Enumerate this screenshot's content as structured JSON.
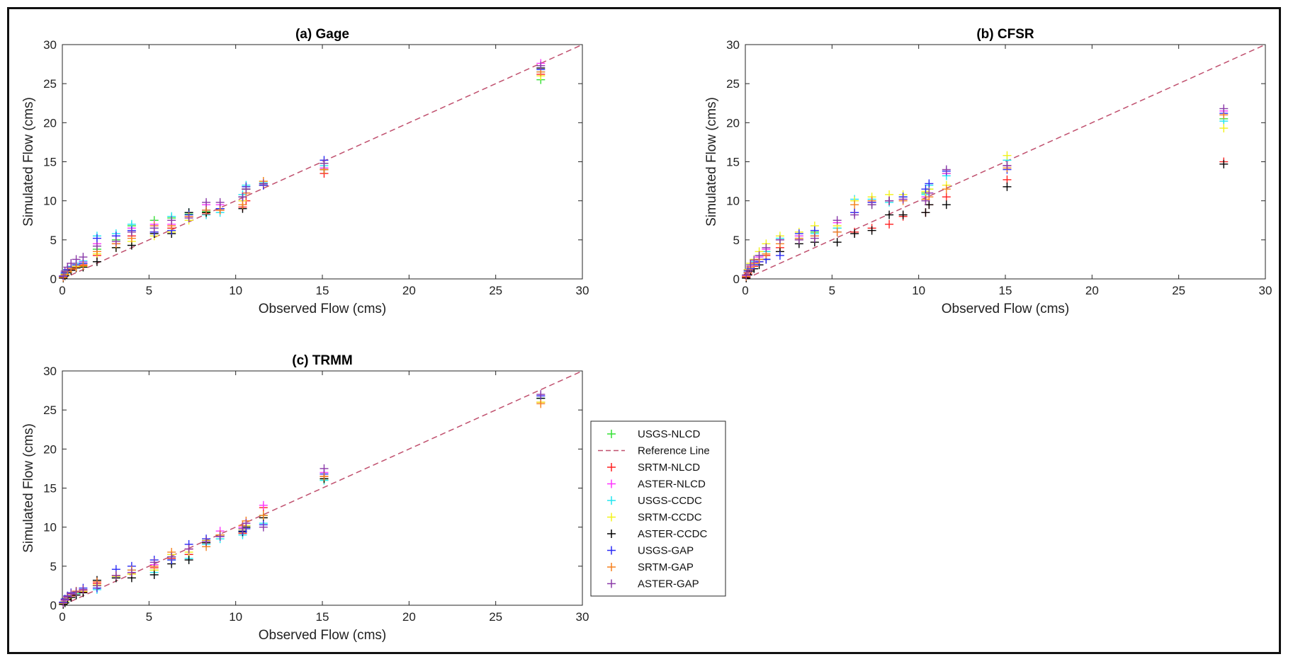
{
  "chart_data": [
    {
      "type": "scatter",
      "title": "(a) Gage",
      "xlabel": "Observed Flow (cms)",
      "ylabel": "Simulated Flow (cms)",
      "xlim": [
        0,
        30
      ],
      "ylim": [
        0,
        30
      ],
      "xticks": [
        "0",
        "5",
        "10",
        "15",
        "20",
        "25",
        "30"
      ],
      "yticks": [
        "0",
        "5",
        "10",
        "15",
        "20",
        "25",
        "30"
      ],
      "reference_line": [
        [
          0,
          0
        ],
        [
          30,
          30
        ]
      ],
      "x": [
        0.05,
        0.15,
        0.3,
        0.5,
        0.8,
        1.2,
        2.0,
        3.1,
        4.0,
        5.3,
        6.3,
        7.3,
        8.3,
        9.1,
        10.4,
        10.6,
        11.6,
        15.1,
        27.6
      ],
      "series": [
        {
          "name": "USGS-NLCD",
          "values": [
            0.2,
            0.6,
            1.0,
            1.5,
            1.8,
            2.0,
            3.8,
            5.0,
            6.8,
            7.5,
            7.8,
            8.3,
            8.6,
            9.0,
            10.5,
            11.5,
            12.0,
            14.8,
            25.5
          ]
        },
        {
          "name": "SRTM-NLCD",
          "values": [
            0.2,
            0.5,
            0.9,
            1.2,
            1.5,
            1.8,
            3.0,
            4.5,
            5.5,
            6.0,
            6.5,
            8.0,
            8.3,
            8.8,
            9.2,
            10.0,
            12.2,
            13.5,
            26.2
          ]
        },
        {
          "name": "ASTER-NLCD",
          "values": [
            0.3,
            0.7,
            1.2,
            1.6,
            2.0,
            2.2,
            4.5,
            5.5,
            6.5,
            7.0,
            7.0,
            8.0,
            9.5,
            9.5,
            10.0,
            11.0,
            12.0,
            14.2,
            27.6
          ]
        },
        {
          "name": "USGS-CCDC",
          "values": [
            0.3,
            0.7,
            1.1,
            1.6,
            2.0,
            2.3,
            5.5,
            5.8,
            7.0,
            6.5,
            8.0,
            8.5,
            8.2,
            8.5,
            10.8,
            12.0,
            12.3,
            14.5,
            26.5
          ]
        },
        {
          "name": "SRTM-CCDC",
          "values": [
            0.2,
            0.5,
            0.9,
            1.3,
            1.6,
            1.6,
            3.2,
            4.0,
            4.8,
            5.5,
            6.0,
            7.5,
            8.5,
            9.0,
            10.0,
            11.8,
            12.5,
            14.0,
            26.0
          ]
        },
        {
          "name": "ASTER-CCDC",
          "values": [
            0.1,
            0.4,
            0.8,
            1.1,
            1.4,
            1.5,
            2.2,
            4.0,
            4.3,
            5.8,
            5.8,
            8.5,
            8.5,
            9.0,
            9.0,
            11.5,
            12.0,
            14.0,
            27.0
          ]
        },
        {
          "name": "USGS-GAP",
          "values": [
            0.3,
            0.8,
            1.2,
            1.5,
            1.8,
            2.0,
            5.2,
            5.5,
            6.2,
            6.0,
            6.2,
            8.2,
            8.8,
            9.0,
            10.5,
            11.8,
            12.0,
            15.2,
            26.8
          ]
        },
        {
          "name": "SRTM-GAP",
          "values": [
            0.2,
            0.6,
            1.0,
            1.3,
            1.5,
            1.7,
            3.5,
            4.5,
            5.2,
            6.8,
            6.8,
            8.0,
            8.8,
            8.8,
            9.5,
            11.0,
            12.5,
            14.0,
            26.5
          ]
        },
        {
          "name": "ASTER-GAP",
          "values": [
            0.4,
            1.0,
            1.5,
            2.0,
            2.5,
            2.8,
            4.2,
            4.8,
            6.0,
            6.5,
            7.5,
            7.8,
            9.8,
            9.8,
            10.5,
            11.5,
            12.2,
            14.8,
            27.3
          ]
        }
      ]
    },
    {
      "type": "scatter",
      "title": "(b) CFSR",
      "xlabel": "Observed Flow (cms)",
      "ylabel": "Simulated Flow (cms)",
      "xlim": [
        0,
        30
      ],
      "ylim": [
        0,
        30
      ],
      "xticks": [
        "0",
        "5",
        "10",
        "15",
        "20",
        "25",
        "30"
      ],
      "yticks": [
        "0",
        "5",
        "10",
        "15",
        "20",
        "25",
        "30"
      ],
      "reference_line": [
        [
          0,
          0
        ],
        [
          30,
          30
        ]
      ],
      "x": [
        0.05,
        0.15,
        0.3,
        0.5,
        0.8,
        1.2,
        2.0,
        3.1,
        4.0,
        5.3,
        6.3,
        7.3,
        8.3,
        9.1,
        10.4,
        10.6,
        11.6,
        15.1,
        27.6
      ],
      "series": [
        {
          "name": "USGS-NLCD",
          "values": [
            0.3,
            0.8,
            1.5,
            2.0,
            2.5,
            3.5,
            5.0,
            5.5,
            6.0,
            6.5,
            8.5,
            9.5,
            10.0,
            10.5,
            11.0,
            11.5,
            13.5,
            14.5,
            20.5
          ]
        },
        {
          "name": "SRTM-NLCD",
          "values": [
            0.2,
            0.6,
            1.2,
            1.6,
            2.2,
            3.0,
            4.0,
            5.0,
            5.5,
            6.0,
            6.0,
            6.5,
            7.0,
            8.0,
            8.5,
            9.5,
            10.5,
            12.7,
            15.0
          ]
        },
        {
          "name": "ASTER-NLCD",
          "values": [
            0.4,
            0.9,
            1.6,
            2.1,
            2.8,
            3.8,
            5.0,
            5.5,
            5.5,
            7.2,
            8.5,
            9.8,
            10.0,
            10.2,
            10.5,
            11.0,
            13.5,
            14.5,
            21.5
          ]
        },
        {
          "name": "USGS-CCDC",
          "values": [
            0.5,
            1.0,
            1.8,
            2.2,
            3.0,
            3.5,
            5.2,
            5.2,
            5.8,
            6.5,
            10.2,
            10.2,
            9.8,
            10.5,
            10.8,
            12.0,
            13.2,
            15.2,
            20.2
          ]
        },
        {
          "name": "SRTM-CCDC",
          "values": [
            0.5,
            1.2,
            2.0,
            2.5,
            3.5,
            4.5,
            5.5,
            6.0,
            6.8,
            6.8,
            10.0,
            10.5,
            10.8,
            10.8,
            11.2,
            11.5,
            12.0,
            15.8,
            19.3
          ]
        },
        {
          "name": "ASTER-CCDC",
          "values": [
            0.1,
            0.5,
            1.0,
            1.3,
            1.8,
            2.5,
            3.5,
            4.5,
            4.7,
            4.7,
            5.8,
            6.2,
            8.2,
            8.2,
            8.5,
            9.5,
            9.5,
            11.8,
            14.7
          ]
        },
        {
          "name": "USGS-GAP",
          "values": [
            0.3,
            0.8,
            1.3,
            1.8,
            2.2,
            2.5,
            3.0,
            5.8,
            6.2,
            6.0,
            8.5,
            9.8,
            10.0,
            10.5,
            11.5,
            12.2,
            13.8,
            14.0,
            21.2
          ]
        },
        {
          "name": "SRTM-GAP",
          "values": [
            0.3,
            0.8,
            1.5,
            2.0,
            2.5,
            3.2,
            4.5,
            5.2,
            5.5,
            6.0,
            9.5,
            10.0,
            10.0,
            10.0,
            10.2,
            10.5,
            11.5,
            14.2,
            21.0
          ]
        },
        {
          "name": "ASTER-GAP",
          "values": [
            0.5,
            1.1,
            1.8,
            2.4,
            3.0,
            4.0,
            5.0,
            5.0,
            5.2,
            7.5,
            8.2,
            9.5,
            10.0,
            10.2,
            10.0,
            11.0,
            14.0,
            14.5,
            21.8
          ]
        }
      ]
    },
    {
      "type": "scatter",
      "title": "(c) TRMM",
      "xlabel": "Observed Flow (cms)",
      "ylabel": "Simulated Flow (cms)",
      "xlim": [
        0,
        30
      ],
      "ylim": [
        0,
        30
      ],
      "xticks": [
        "0",
        "5",
        "10",
        "15",
        "20",
        "25",
        "30"
      ],
      "yticks": [
        "0",
        "5",
        "10",
        "15",
        "20",
        "25",
        "30"
      ],
      "reference_line": [
        [
          0,
          0
        ],
        [
          30,
          30
        ]
      ],
      "x": [
        0.05,
        0.15,
        0.3,
        0.5,
        0.8,
        1.2,
        2.0,
        3.1,
        4.0,
        5.3,
        6.3,
        7.3,
        8.3,
        9.1,
        10.4,
        10.6,
        11.6,
        15.1,
        27.6
      ],
      "series": [
        {
          "name": "USGS-NLCD",
          "values": [
            0.2,
            0.5,
            0.9,
            1.2,
            1.5,
            1.8,
            2.5,
            3.5,
            4.0,
            4.5,
            6.2,
            6.5,
            8.0,
            9.0,
            9.5,
            10.0,
            11.5,
            16.0,
            26.5
          ]
        },
        {
          "name": "SRTM-NLCD",
          "values": [
            0.2,
            0.5,
            0.8,
            1.2,
            1.5,
            1.7,
            2.8,
            3.5,
            4.0,
            4.8,
            6.0,
            6.5,
            8.0,
            9.0,
            9.2,
            10.2,
            12.5,
            16.5,
            26.0
          ]
        },
        {
          "name": "ASTER-NLCD",
          "values": [
            0.3,
            0.6,
            1.0,
            1.4,
            1.6,
            1.9,
            3.0,
            3.8,
            4.2,
            5.2,
            6.5,
            7.2,
            8.2,
            9.5,
            10.0,
            10.5,
            12.8,
            17.0,
            26.8
          ]
        },
        {
          "name": "USGS-CCDC",
          "values": [
            0.2,
            0.5,
            0.9,
            1.3,
            1.5,
            1.8,
            2.0,
            3.5,
            4.5,
            4.2,
            5.8,
            6.0,
            7.8,
            8.5,
            9.0,
            10.2,
            10.5,
            16.0,
            26.5
          ]
        },
        {
          "name": "SRTM-CCDC",
          "values": [
            0.2,
            0.5,
            0.9,
            1.3,
            1.6,
            1.8,
            2.6,
            3.7,
            4.0,
            4.5,
            6.5,
            6.8,
            8.3,
            9.0,
            9.6,
            10.2,
            11.2,
            16.2,
            26.0
          ]
        },
        {
          "name": "ASTER-CCDC",
          "values": [
            0.1,
            0.3,
            0.7,
            1.0,
            1.3,
            1.6,
            3.2,
            3.5,
            3.5,
            3.9,
            5.3,
            5.8,
            8.0,
            9.0,
            9.4,
            10.0,
            11.2,
            16.2,
            26.5
          ]
        },
        {
          "name": "USGS-GAP",
          "values": [
            0.4,
            0.8,
            1.2,
            1.6,
            1.8,
            2.2,
            2.2,
            4.6,
            5.0,
            5.8,
            5.8,
            7.8,
            8.5,
            8.8,
            9.5,
            9.8,
            10.3,
            16.8,
            26.8
          ]
        },
        {
          "name": "SRTM-GAP",
          "values": [
            0.3,
            0.7,
            1.1,
            1.5,
            1.8,
            2.0,
            3.0,
            3.8,
            4.5,
            5.0,
            6.8,
            7.2,
            7.5,
            9.0,
            10.2,
            10.8,
            11.5,
            16.5,
            25.8
          ]
        },
        {
          "name": "ASTER-GAP",
          "values": [
            0.3,
            0.7,
            1.1,
            1.5,
            1.7,
            2.0,
            2.5,
            3.8,
            4.2,
            5.5,
            6.2,
            7.2,
            8.2,
            8.8,
            9.8,
            10.5,
            10.0,
            17.5,
            27.0
          ]
        }
      ]
    }
  ],
  "legend": {
    "entries": [
      {
        "label": "USGS-NLCD",
        "color": "#33e033",
        "marker": "+"
      },
      {
        "label": "Reference Line",
        "color": "#c0506e",
        "marker": "dash"
      },
      {
        "label": "SRTM-NLCD",
        "color": "#ff2020",
        "marker": "+"
      },
      {
        "label": "ASTER-NLCD",
        "color": "#ff33ff",
        "marker": "+"
      },
      {
        "label": "USGS-CCDC",
        "color": "#22e5f0",
        "marker": "+"
      },
      {
        "label": "SRTM-CCDC",
        "color": "#f2f21a",
        "marker": "+"
      },
      {
        "label": "ASTER-CCDC",
        "color": "#000000",
        "marker": "+"
      },
      {
        "label": "USGS-GAP",
        "color": "#2a2af5",
        "marker": "+"
      },
      {
        "label": "SRTM-GAP",
        "color": "#f5801e",
        "marker": "+"
      },
      {
        "label": "ASTER-GAP",
        "color": "#8a3aa8",
        "marker": "+"
      }
    ]
  }
}
